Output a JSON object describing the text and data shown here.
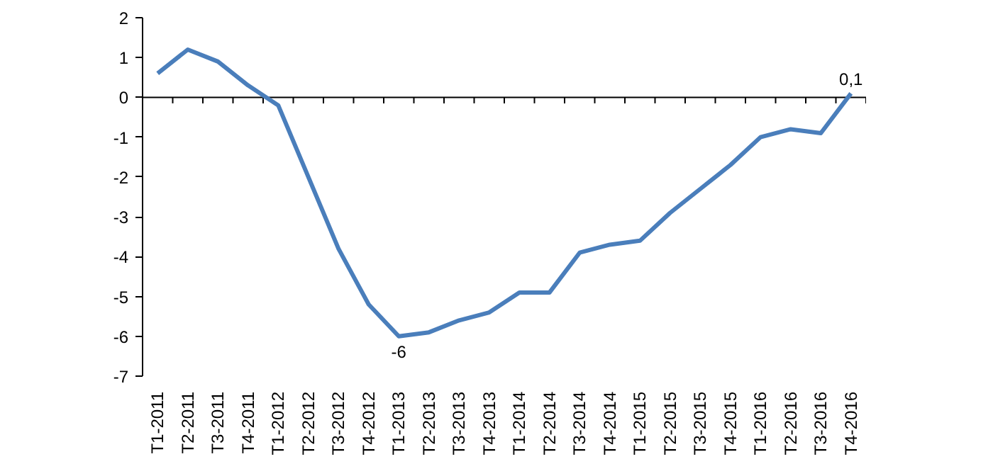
{
  "chart_data": {
    "type": "line",
    "categories": [
      "T1-2011",
      "T2-2011",
      "T3-2011",
      "T4-2011",
      "T1-2012",
      "T2-2012",
      "T3-2012",
      "T4-2012",
      "T1-2013",
      "T2-2013",
      "T3-2013",
      "T4-2013",
      "T1-2014",
      "T2-2014",
      "T3-2014",
      "T4-2014",
      "T1-2015",
      "T2-2015",
      "T3-2015",
      "T4-2015",
      "T1-2016",
      "T2-2016",
      "T3-2016",
      "T4-2016"
    ],
    "series": [
      {
        "color": "#4a7ebb",
        "values": [
          0.6,
          1.2,
          0.9,
          0.3,
          -0.2,
          -2.0,
          -3.8,
          -5.2,
          -6,
          -5.9,
          -5.6,
          -5.4,
          -4.9,
          -4.9,
          -3.9,
          -3.7,
          -3.6,
          -2.9,
          -2.3,
          -1.7,
          -1.0,
          -0.8,
          -0.9,
          0.1
        ],
        "value_labels": [
          null,
          null,
          null,
          null,
          null,
          null,
          null,
          null,
          "-6",
          null,
          null,
          null,
          null,
          null,
          null,
          null,
          null,
          null,
          null,
          null,
          null,
          null,
          null,
          "0,1"
        ]
      }
    ],
    "ylim": [
      -7,
      2
    ],
    "yticks": [
      -7,
      -6,
      -5,
      -4,
      -3,
      -2,
      -1,
      0,
      1,
      2
    ],
    "marker": "none",
    "line_style": "solid"
  }
}
